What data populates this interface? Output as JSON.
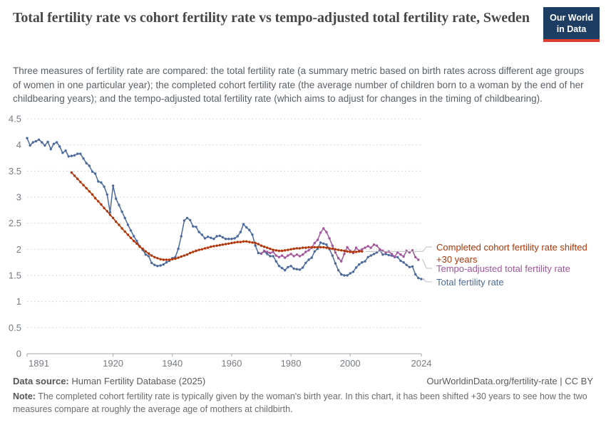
{
  "header": {
    "title": "Total fertility rate vs cohort fertility rate vs tempo-adjusted total fertility rate, Sweden",
    "subtitle": "Three measures of fertility rate are compared: the total fertility rate (a summary metric based on birth rates across different age groups of women in one particular year); the completed cohort fertility rate (the average number of children born to a woman by the end of her childbearing years); and the tempo-adjusted total fertility rate (which aims to adjust for changes in the timing of childbearing).",
    "logo_line1": "Our World",
    "logo_line2": "in Data"
  },
  "chart_data": {
    "type": "line",
    "title": "Total fertility rate vs cohort fertility rate vs tempo-adjusted total fertility rate, Sweden",
    "xlabel": "",
    "ylabel": "",
    "x_range": [
      1891,
      2024
    ],
    "y_range": [
      0,
      4.5
    ],
    "x_ticks": [
      1891,
      1920,
      1940,
      1960,
      1980,
      2000,
      2024
    ],
    "y_ticks": [
      0,
      0.5,
      1,
      1.5,
      2,
      2.5,
      3,
      3.5,
      4,
      4.5
    ],
    "grid": "horizontal-dashed",
    "legend_position": "right-of-line-ends",
    "series": [
      {
        "name": "Completed cohort fertility rate shifted +30 years",
        "label_lines": [
          "Completed cohort fertility rate shifted",
          "+30 years"
        ],
        "color": "#B13507",
        "points": [
          [
            1906,
            3.47
          ],
          [
            1907,
            3.41
          ],
          [
            1908,
            3.35
          ],
          [
            1909,
            3.29
          ],
          [
            1910,
            3.23
          ],
          [
            1911,
            3.17
          ],
          [
            1912,
            3.11
          ],
          [
            1913,
            3.05
          ],
          [
            1914,
            2.98
          ],
          [
            1915,
            2.92
          ],
          [
            1916,
            2.86
          ],
          [
            1917,
            2.79
          ],
          [
            1918,
            2.73
          ],
          [
            1919,
            2.66
          ],
          [
            1920,
            2.6
          ],
          [
            1921,
            2.53
          ],
          [
            1922,
            2.47
          ],
          [
            1923,
            2.4
          ],
          [
            1924,
            2.34
          ],
          [
            1925,
            2.28
          ],
          [
            1926,
            2.22
          ],
          [
            1927,
            2.16
          ],
          [
            1928,
            2.11
          ],
          [
            1929,
            2.05
          ],
          [
            1930,
            2.01
          ],
          [
            1931,
            1.96
          ],
          [
            1932,
            1.92
          ],
          [
            1933,
            1.88
          ],
          [
            1934,
            1.85
          ],
          [
            1935,
            1.83
          ],
          [
            1936,
            1.81
          ],
          [
            1937,
            1.8
          ],
          [
            1938,
            1.8
          ],
          [
            1939,
            1.8
          ],
          [
            1940,
            1.81
          ],
          [
            1941,
            1.82
          ],
          [
            1942,
            1.84
          ],
          [
            1943,
            1.86
          ],
          [
            1944,
            1.88
          ],
          [
            1945,
            1.9
          ],
          [
            1946,
            1.93
          ],
          [
            1947,
            1.95
          ],
          [
            1948,
            1.97
          ],
          [
            1949,
            1.99
          ],
          [
            1950,
            2.0
          ],
          [
            1951,
            2.02
          ],
          [
            1952,
            2.03
          ],
          [
            1953,
            2.05
          ],
          [
            1954,
            2.06
          ],
          [
            1955,
            2.07
          ],
          [
            1956,
            2.08
          ],
          [
            1957,
            2.09
          ],
          [
            1958,
            2.1
          ],
          [
            1959,
            2.11
          ],
          [
            1960,
            2.12
          ],
          [
            1961,
            2.13
          ],
          [
            1962,
            2.14
          ],
          [
            1963,
            2.14
          ],
          [
            1964,
            2.15
          ],
          [
            1965,
            2.15
          ],
          [
            1966,
            2.14
          ],
          [
            1967,
            2.13
          ],
          [
            1968,
            2.12
          ],
          [
            1969,
            2.1
          ],
          [
            1970,
            2.07
          ],
          [
            1971,
            2.05
          ],
          [
            1972,
            2.03
          ],
          [
            1973,
            2.01
          ],
          [
            1974,
            1.99
          ],
          [
            1975,
            1.98
          ],
          [
            1976,
            1.97
          ],
          [
            1977,
            1.97
          ],
          [
            1978,
            1.98
          ],
          [
            1979,
            1.99
          ],
          [
            1980,
            2.0
          ],
          [
            1981,
            2.01
          ],
          [
            1982,
            2.02
          ],
          [
            1983,
            2.02
          ],
          [
            1984,
            2.03
          ],
          [
            1985,
            2.03
          ],
          [
            1986,
            2.04
          ],
          [
            1987,
            2.04
          ],
          [
            1988,
            2.04
          ],
          [
            1989,
            2.04
          ],
          [
            1990,
            2.04
          ],
          [
            1991,
            2.04
          ],
          [
            1992,
            2.03
          ],
          [
            1993,
            2.02
          ],
          [
            1994,
            2.01
          ],
          [
            1995,
            2.0
          ],
          [
            1996,
            1.99
          ],
          [
            1997,
            1.98
          ],
          [
            1998,
            1.97
          ],
          [
            1999,
            1.96
          ],
          [
            2000,
            1.95
          ],
          [
            2001,
            1.95
          ],
          [
            2002,
            1.95
          ],
          [
            2003,
            1.96
          ],
          [
            2004,
            1.96
          ]
        ]
      },
      {
        "name": "Tempo-adjusted total fertility rate",
        "label_lines": [
          "Tempo-adjusted total fertility rate"
        ],
        "color": "#A2559C",
        "points": [
          [
            1970,
            1.92
          ],
          [
            1971,
            1.97
          ],
          [
            1972,
            1.95
          ],
          [
            1973,
            1.93
          ],
          [
            1974,
            1.95
          ],
          [
            1975,
            1.88
          ],
          [
            1976,
            1.85
          ],
          [
            1977,
            1.88
          ],
          [
            1978,
            1.84
          ],
          [
            1979,
            1.88
          ],
          [
            1980,
            1.91
          ],
          [
            1981,
            1.87
          ],
          [
            1982,
            1.9
          ],
          [
            1983,
            1.87
          ],
          [
            1984,
            1.9
          ],
          [
            1985,
            1.95
          ],
          [
            1986,
            1.98
          ],
          [
            1987,
            2.03
          ],
          [
            1988,
            2.12
          ],
          [
            1989,
            2.18
          ],
          [
            1990,
            2.32
          ],
          [
            1991,
            2.4
          ],
          [
            1992,
            2.33
          ],
          [
            1993,
            2.21
          ],
          [
            1994,
            2.07
          ],
          [
            1995,
            1.94
          ],
          [
            1996,
            1.83
          ],
          [
            1997,
            1.77
          ],
          [
            1998,
            1.91
          ],
          [
            1999,
            2.04
          ],
          [
            2000,
            1.97
          ],
          [
            2001,
            1.93
          ],
          [
            2002,
            2.03
          ],
          [
            2003,
            1.97
          ],
          [
            2004,
            2.0
          ],
          [
            2005,
            2.03
          ],
          [
            2006,
            2.06
          ],
          [
            2007,
            2.03
          ],
          [
            2008,
            2.09
          ],
          [
            2009,
            2.07
          ],
          [
            2010,
            2.0
          ],
          [
            2011,
            1.97
          ],
          [
            2012,
            1.94
          ],
          [
            2013,
            1.96
          ],
          [
            2014,
            1.91
          ],
          [
            2015,
            1.86
          ],
          [
            2016,
            1.94
          ],
          [
            2017,
            1.9
          ],
          [
            2018,
            1.86
          ],
          [
            2019,
            1.97
          ],
          [
            2020,
            1.94
          ],
          [
            2021,
            1.98
          ],
          [
            2022,
            1.85
          ],
          [
            2023,
            1.8
          ]
        ]
      },
      {
        "name": "Total fertility rate",
        "label_lines": [
          "Total fertility rate"
        ],
        "color": "#4C6A9C",
        "points": [
          [
            1891,
            4.13
          ],
          [
            1892,
            3.99
          ],
          [
            1893,
            4.05
          ],
          [
            1894,
            4.07
          ],
          [
            1895,
            4.1
          ],
          [
            1896,
            4.05
          ],
          [
            1897,
            3.99
          ],
          [
            1898,
            4.06
          ],
          [
            1899,
            3.92
          ],
          [
            1900,
            4.02
          ],
          [
            1901,
            4.05
          ],
          [
            1902,
            3.97
          ],
          [
            1903,
            3.85
          ],
          [
            1904,
            3.89
          ],
          [
            1905,
            3.78
          ],
          [
            1906,
            3.79
          ],
          [
            1907,
            3.8
          ],
          [
            1908,
            3.83
          ],
          [
            1909,
            3.83
          ],
          [
            1910,
            3.74
          ],
          [
            1911,
            3.65
          ],
          [
            1912,
            3.6
          ],
          [
            1913,
            3.49
          ],
          [
            1914,
            3.45
          ],
          [
            1915,
            3.3
          ],
          [
            1916,
            3.28
          ],
          [
            1917,
            3.2
          ],
          [
            1918,
            3.05
          ],
          [
            1919,
            2.71
          ],
          [
            1920,
            3.22
          ],
          [
            1921,
            2.97
          ],
          [
            1922,
            2.85
          ],
          [
            1923,
            2.72
          ],
          [
            1924,
            2.6
          ],
          [
            1925,
            2.47
          ],
          [
            1926,
            2.36
          ],
          [
            1927,
            2.25
          ],
          [
            1928,
            2.16
          ],
          [
            1929,
            2.06
          ],
          [
            1930,
            1.99
          ],
          [
            1931,
            1.9
          ],
          [
            1932,
            1.87
          ],
          [
            1933,
            1.74
          ],
          [
            1934,
            1.7
          ],
          [
            1935,
            1.68
          ],
          [
            1936,
            1.69
          ],
          [
            1937,
            1.71
          ],
          [
            1938,
            1.75
          ],
          [
            1939,
            1.78
          ],
          [
            1940,
            1.83
          ],
          [
            1941,
            1.85
          ],
          [
            1942,
            2.01
          ],
          [
            1943,
            2.25
          ],
          [
            1944,
            2.55
          ],
          [
            1945,
            2.6
          ],
          [
            1946,
            2.56
          ],
          [
            1947,
            2.44
          ],
          [
            1948,
            2.43
          ],
          [
            1949,
            2.33
          ],
          [
            1950,
            2.28
          ],
          [
            1951,
            2.21
          ],
          [
            1952,
            2.24
          ],
          [
            1953,
            2.22
          ],
          [
            1954,
            2.2
          ],
          [
            1955,
            2.25
          ],
          [
            1956,
            2.26
          ],
          [
            1957,
            2.23
          ],
          [
            1958,
            2.2
          ],
          [
            1959,
            2.2
          ],
          [
            1960,
            2.2
          ],
          [
            1961,
            2.21
          ],
          [
            1962,
            2.25
          ],
          [
            1963,
            2.33
          ],
          [
            1964,
            2.48
          ],
          [
            1965,
            2.42
          ],
          [
            1966,
            2.37
          ],
          [
            1967,
            2.28
          ],
          [
            1968,
            2.07
          ],
          [
            1969,
            1.93
          ],
          [
            1970,
            1.92
          ],
          [
            1971,
            1.96
          ],
          [
            1972,
            1.91
          ],
          [
            1973,
            1.87
          ],
          [
            1974,
            1.87
          ],
          [
            1975,
            1.77
          ],
          [
            1976,
            1.68
          ],
          [
            1977,
            1.64
          ],
          [
            1978,
            1.6
          ],
          [
            1979,
            1.66
          ],
          [
            1980,
            1.68
          ],
          [
            1981,
            1.63
          ],
          [
            1982,
            1.62
          ],
          [
            1983,
            1.61
          ],
          [
            1984,
            1.65
          ],
          [
            1985,
            1.74
          ],
          [
            1986,
            1.8
          ],
          [
            1987,
            1.84
          ],
          [
            1988,
            1.96
          ],
          [
            1989,
            2.01
          ],
          [
            1990,
            2.13
          ],
          [
            1991,
            2.11
          ],
          [
            1992,
            2.09
          ],
          [
            1993,
            2.0
          ],
          [
            1994,
            1.88
          ],
          [
            1995,
            1.73
          ],
          [
            1996,
            1.6
          ],
          [
            1997,
            1.52
          ],
          [
            1998,
            1.5
          ],
          [
            1999,
            1.5
          ],
          [
            2000,
            1.54
          ],
          [
            2001,
            1.57
          ],
          [
            2002,
            1.65
          ],
          [
            2003,
            1.71
          ],
          [
            2004,
            1.75
          ],
          [
            2005,
            1.77
          ],
          [
            2006,
            1.85
          ],
          [
            2007,
            1.88
          ],
          [
            2008,
            1.91
          ],
          [
            2009,
            1.94
          ],
          [
            2010,
            1.98
          ],
          [
            2011,
            1.9
          ],
          [
            2012,
            1.91
          ],
          [
            2013,
            1.89
          ],
          [
            2014,
            1.88
          ],
          [
            2015,
            1.85
          ],
          [
            2016,
            1.85
          ],
          [
            2017,
            1.78
          ],
          [
            2018,
            1.75
          ],
          [
            2019,
            1.7
          ],
          [
            2020,
            1.66
          ],
          [
            2021,
            1.67
          ],
          [
            2022,
            1.52
          ],
          [
            2023,
            1.45
          ],
          [
            2024,
            1.43
          ]
        ]
      }
    ]
  },
  "footer": {
    "source_label": "Data source:",
    "source_value": "Human Fertility Database (2025)",
    "link": "OurWorldinData.org/fertility-rate | CC BY",
    "note_label": "Note:",
    "note_text": "The completed cohort fertility rate is typically given by the woman's birth year. In this chart, it has been shifted +30 years to see how the two measures compare at roughly the average age of mothers at childbirth."
  }
}
